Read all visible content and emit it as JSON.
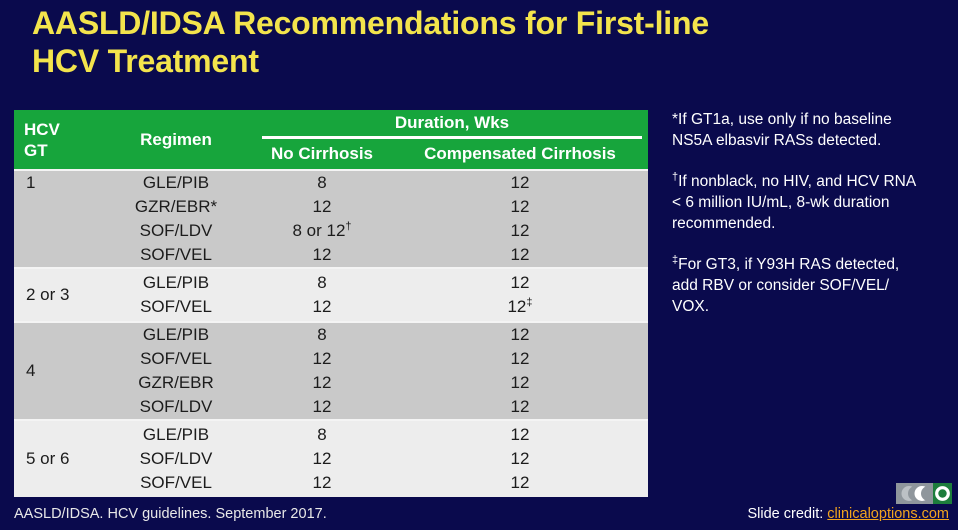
{
  "slide": {
    "title_line1": "AASLD/IDSA Recommendations for First-line",
    "title_line2": "HCV Treatment",
    "colors": {
      "background": "#0a0a4d",
      "title": "#f3e44c",
      "table_header": "#17a53c",
      "row_dark": "#c9c9c9",
      "row_light": "#ededed",
      "link": "#f2a41e"
    }
  },
  "table": {
    "header": {
      "gt_line1": "HCV",
      "gt_line2": "GT",
      "regimen": "Regimen",
      "duration": "Duration, Wks",
      "no_cirrhosis": "No Cirrhosis",
      "compensated": "Compensated Cirrhosis"
    },
    "groups": [
      {
        "gt": "1",
        "gt_align": "top",
        "shade": "dark",
        "rows": [
          {
            "regimen": "GLE/PIB",
            "no_cirrhosis": "8",
            "compensated": "12"
          },
          {
            "regimen": "GZR/EBR*",
            "no_cirrhosis": "12",
            "compensated": "12"
          },
          {
            "regimen": "SOF/LDV",
            "no_cirrhosis": "8 or 12",
            "no_cirrhosis_sup": "†",
            "compensated": "12"
          },
          {
            "regimen": "SOF/VEL",
            "no_cirrhosis": "12",
            "compensated": "12"
          }
        ]
      },
      {
        "gt": "2 or 3",
        "gt_align": "center",
        "shade": "light",
        "rows": [
          {
            "regimen": "GLE/PIB",
            "no_cirrhosis": "8",
            "compensated": "12"
          },
          {
            "regimen": "SOF/VEL",
            "no_cirrhosis": "12",
            "compensated": "12",
            "compensated_sup": "‡"
          }
        ]
      },
      {
        "gt": "4",
        "gt_align": "center",
        "shade": "dark",
        "rows": [
          {
            "regimen": "GLE/PIB",
            "no_cirrhosis": "8",
            "compensated": "12"
          },
          {
            "regimen": "SOF/VEL",
            "no_cirrhosis": "12",
            "compensated": "12"
          },
          {
            "regimen": "GZR/EBR",
            "no_cirrhosis": "12",
            "compensated": "12"
          },
          {
            "regimen": "SOF/LDV",
            "no_cirrhosis": "12",
            "compensated": "12"
          }
        ]
      },
      {
        "gt": "5 or 6",
        "gt_align": "center",
        "shade": "light",
        "rows": [
          {
            "regimen": "GLE/PIB",
            "no_cirrhosis": "8",
            "compensated": "12"
          },
          {
            "regimen": "SOF/LDV",
            "no_cirrhosis": "12",
            "compensated": "12"
          },
          {
            "regimen": "SOF/VEL",
            "no_cirrhosis": "12",
            "compensated": "12"
          }
        ]
      }
    ]
  },
  "footnotes": [
    {
      "marker": "*",
      "text": "If GT1a, use only if no baseline\nNS5A elbasvir RASs detected."
    },
    {
      "marker": "†",
      "text": "If nonblack, no HIV, and HCV RNA\n< 6 million IU/mL, 8-wk duration\nrecommended."
    },
    {
      "marker": "‡",
      "text": "For GT3, if Y93H RAS detected,\nadd RBV or consider SOF/VEL/\nVOX."
    }
  ],
  "footer": {
    "reference": "AASLD/IDSA. HCV guidelines. September 2017.",
    "credit_label": "Slide credit: ",
    "credit_link": "clinicaloptions.com"
  }
}
